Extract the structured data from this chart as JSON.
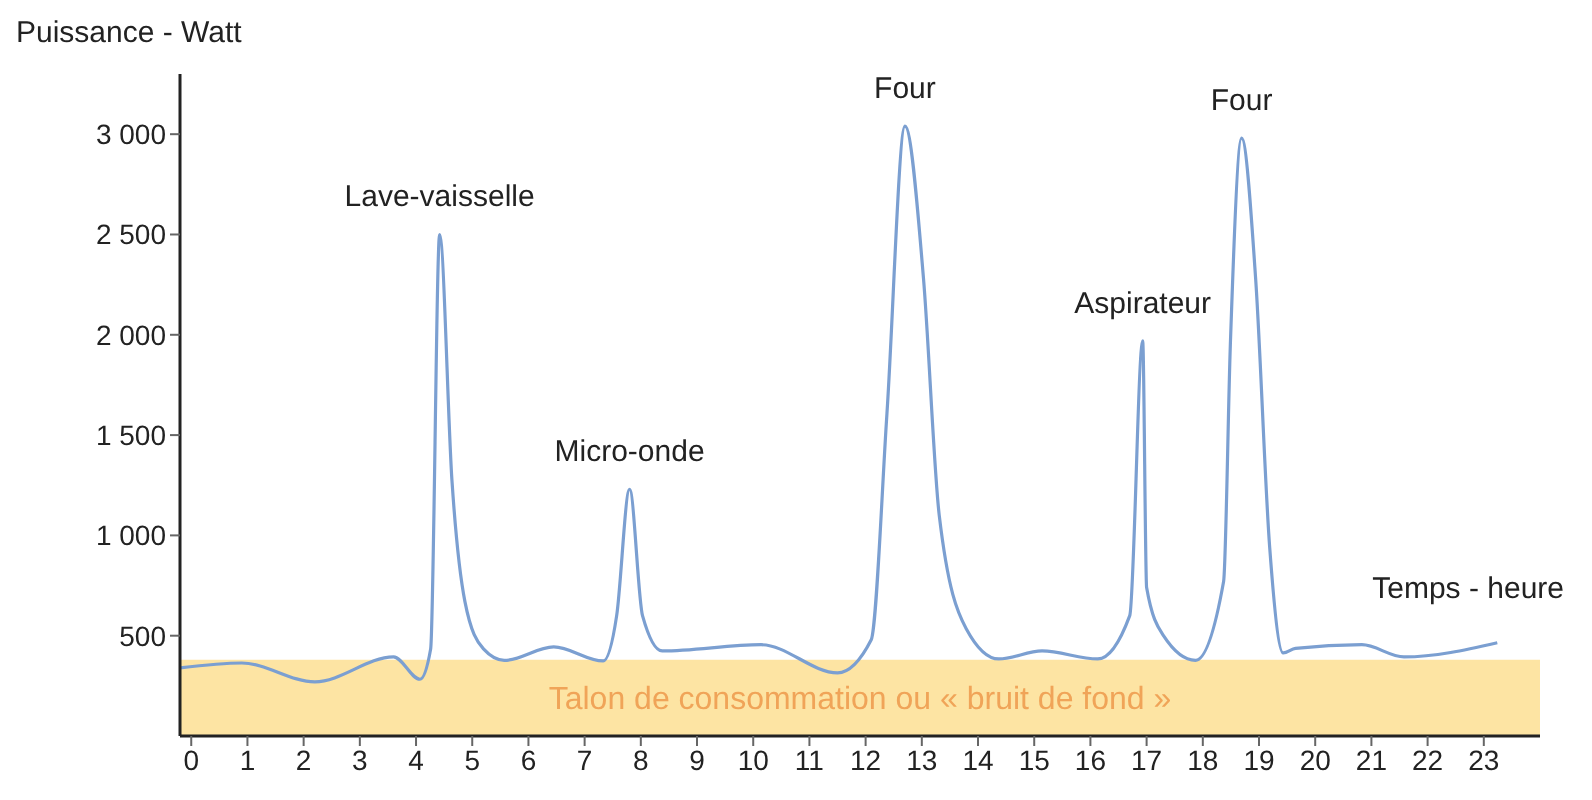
{
  "chart_data": {
    "type": "line",
    "ylabel": "Puissance - Watt",
    "xlabel": "Temps - heure",
    "x": [
      -0.2,
      0.9,
      2.2,
      3.6,
      4.07,
      4.26,
      4.42,
      4.64,
      4.87,
      5.2,
      5.57,
      6.45,
      7.33,
      7.57,
      7.8,
      8.03,
      8.38,
      10.14,
      11.5,
      12.1,
      12.38,
      12.7,
      13.03,
      13.31,
      13.79,
      14.37,
      15.14,
      16.13,
      16.7,
      16.93,
      17.0,
      17.3,
      17.87,
      18.37,
      18.49,
      18.69,
      18.94,
      19.19,
      19.43,
      19.65,
      20.83,
      21.58,
      23.24
    ],
    "series": [
      {
        "color": "#7b9fd1",
        "values": [
          340,
          364,
          270,
          394,
          283,
          434,
          2500,
          1270,
          670,
          434,
          377,
          444,
          374,
          600,
          1230,
          600,
          424,
          455,
          315,
          480,
          1610,
          3040,
          2280,
          1100,
          535,
          384,
          424,
          384,
          600,
          1970,
          740,
          500,
          377,
          770,
          1950,
          2980,
          2280,
          940,
          414,
          437,
          455,
          394,
          465
        ]
      }
    ],
    "xlim": [
      -0.2,
      24
    ],
    "ylim": [
      0,
      3300
    ],
    "xticks": [
      0,
      1,
      2,
      3,
      4,
      5,
      6,
      7,
      8,
      9,
      10,
      11,
      12,
      13,
      14,
      15,
      16,
      17,
      18,
      19,
      20,
      21,
      22,
      23
    ],
    "yticks": [
      {
        "value": 500,
        "label": "500"
      },
      {
        "value": 1000,
        "label": "1 000"
      },
      {
        "value": 1500,
        "label": "1 500"
      },
      {
        "value": 2000,
        "label": "2 000"
      },
      {
        "value": 2500,
        "label": "2 500"
      },
      {
        "value": 3000,
        "label": "3 000"
      }
    ],
    "bands": [
      {
        "axis": "y",
        "from": 0,
        "to": 380,
        "label": "Talon de consommation ou « bruit de fond »",
        "color": "#fde4a3"
      }
    ],
    "annotations": [
      {
        "text": "Lave-vaisselle",
        "x": 4.42,
        "y": 2500
      },
      {
        "text": "Micro-onde",
        "x": 7.8,
        "y": 1230
      },
      {
        "text": "Four",
        "x": 12.7,
        "y": 3040
      },
      {
        "text": "Aspirateur",
        "x": 16.93,
        "y": 1970
      },
      {
        "text": "Four",
        "x": 18.69,
        "y": 2980
      }
    ],
    "grid": false
  }
}
